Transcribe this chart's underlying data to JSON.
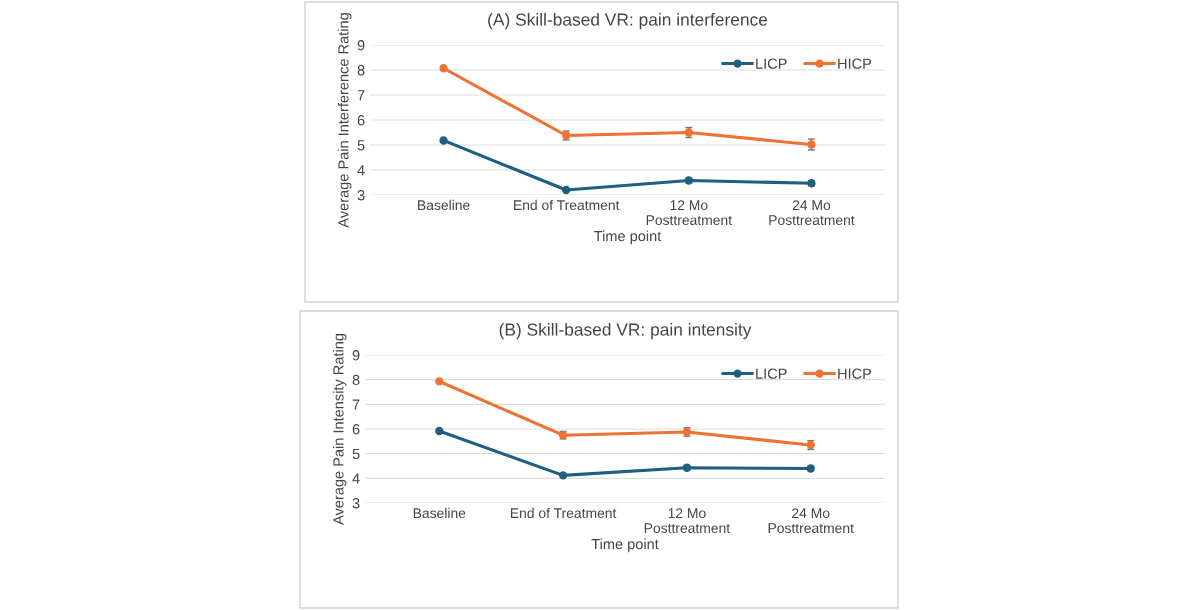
{
  "chart_data": [
    {
      "type": "line",
      "title": "(A) Skill-based VR: pain interference",
      "xlabel": "Time point",
      "ylabel": "Average Pain Interference Rating",
      "categories": [
        "Baseline",
        "End of Treatment",
        "12 Mo\nPosttreatment",
        "24 Mo\nPosttreatment"
      ],
      "ylim": [
        3,
        9
      ],
      "yticks": [
        3,
        4,
        5,
        6,
        7,
        8,
        9
      ],
      "grid": "y",
      "legend": "top right",
      "marker": "circle",
      "series": [
        {
          "name": "LICP",
          "color": "#1f5f7f",
          "values": [
            5.18,
            3.2,
            3.58,
            3.47
          ],
          "errors": [
            null,
            null,
            0.1,
            0.1
          ]
        },
        {
          "name": "HICP",
          "color": "#ee7233",
          "values": [
            8.07,
            5.38,
            5.5,
            5.02
          ],
          "errors": [
            null,
            0.18,
            0.2,
            0.22
          ]
        }
      ]
    },
    {
      "type": "line",
      "title": "(B) Skill-based VR: pain intensity",
      "xlabel": "Time point",
      "ylabel": "Average Pain Intensity Rating",
      "categories": [
        "Baseline",
        "End of Treatment",
        "12 Mo\nPosttreatment",
        "24 Mo\nPosttreatment"
      ],
      "ylim": [
        3,
        9
      ],
      "yticks": [
        3,
        4,
        5,
        6,
        7,
        8,
        9
      ],
      "grid": "y",
      "legend": "top right",
      "marker": "circle",
      "series": [
        {
          "name": "LICP",
          "color": "#1f5f7f",
          "values": [
            5.92,
            4.12,
            4.43,
            4.4
          ],
          "errors": [
            null,
            0.06,
            0.1,
            0.09
          ]
        },
        {
          "name": "HICP",
          "color": "#ee7233",
          "values": [
            7.93,
            5.75,
            5.88,
            5.35
          ],
          "errors": [
            null,
            0.15,
            0.17,
            0.18
          ]
        }
      ]
    }
  ]
}
